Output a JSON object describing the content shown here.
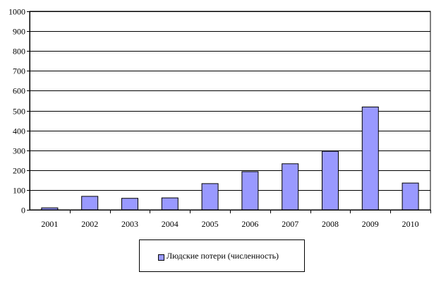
{
  "chart_data": {
    "type": "bar",
    "categories": [
      "2001",
      "2002",
      "2003",
      "2004",
      "2005",
      "2006",
      "2007",
      "2008",
      "2009",
      "2010"
    ],
    "series": [
      {
        "name": "Людские потери (численность)",
        "values": [
          10,
          68,
          58,
          60,
          132,
          192,
          232,
          295,
          518,
          135
        ],
        "color": "#9999ff"
      }
    ],
    "ylim": [
      0,
      1000
    ],
    "yticks": [
      "0",
      "100",
      "200",
      "300",
      "400",
      "500",
      "600",
      "700",
      "800",
      "900",
      "1000"
    ],
    "grid": true,
    "legend_position": "bottom"
  }
}
